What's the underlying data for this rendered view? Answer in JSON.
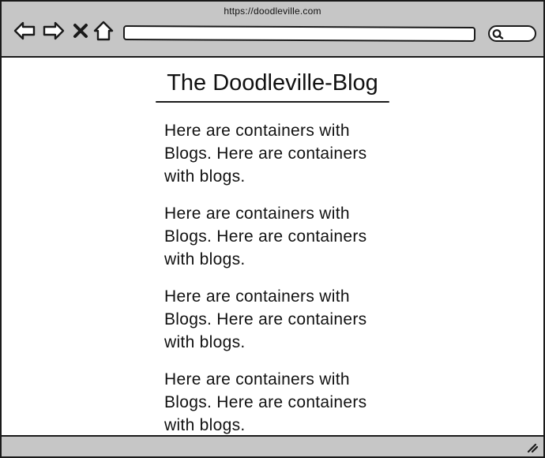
{
  "browser": {
    "url": "https://doodleville.com",
    "address_value": "",
    "search_value": ""
  },
  "toolbar": {
    "icons": [
      "back-arrow-icon",
      "forward-arrow-icon",
      "close-x-icon",
      "home-icon",
      "search-icon"
    ]
  },
  "page": {
    "title": "The Doodleville-Blog",
    "posts": [
      {
        "text": "Here are containers with Blogs. Here are containers with blogs."
      },
      {
        "text": "Here are containers with Blogs. Here are containers with blogs."
      },
      {
        "text": "Here are containers with Blogs. Here are containers with blogs."
      },
      {
        "text": "Here are containers with Blogs. Here are containers with blogs."
      }
    ]
  },
  "colors": {
    "chrome": "#c6c6c6",
    "stroke": "#1a1a1a",
    "background": "#ffffff"
  }
}
